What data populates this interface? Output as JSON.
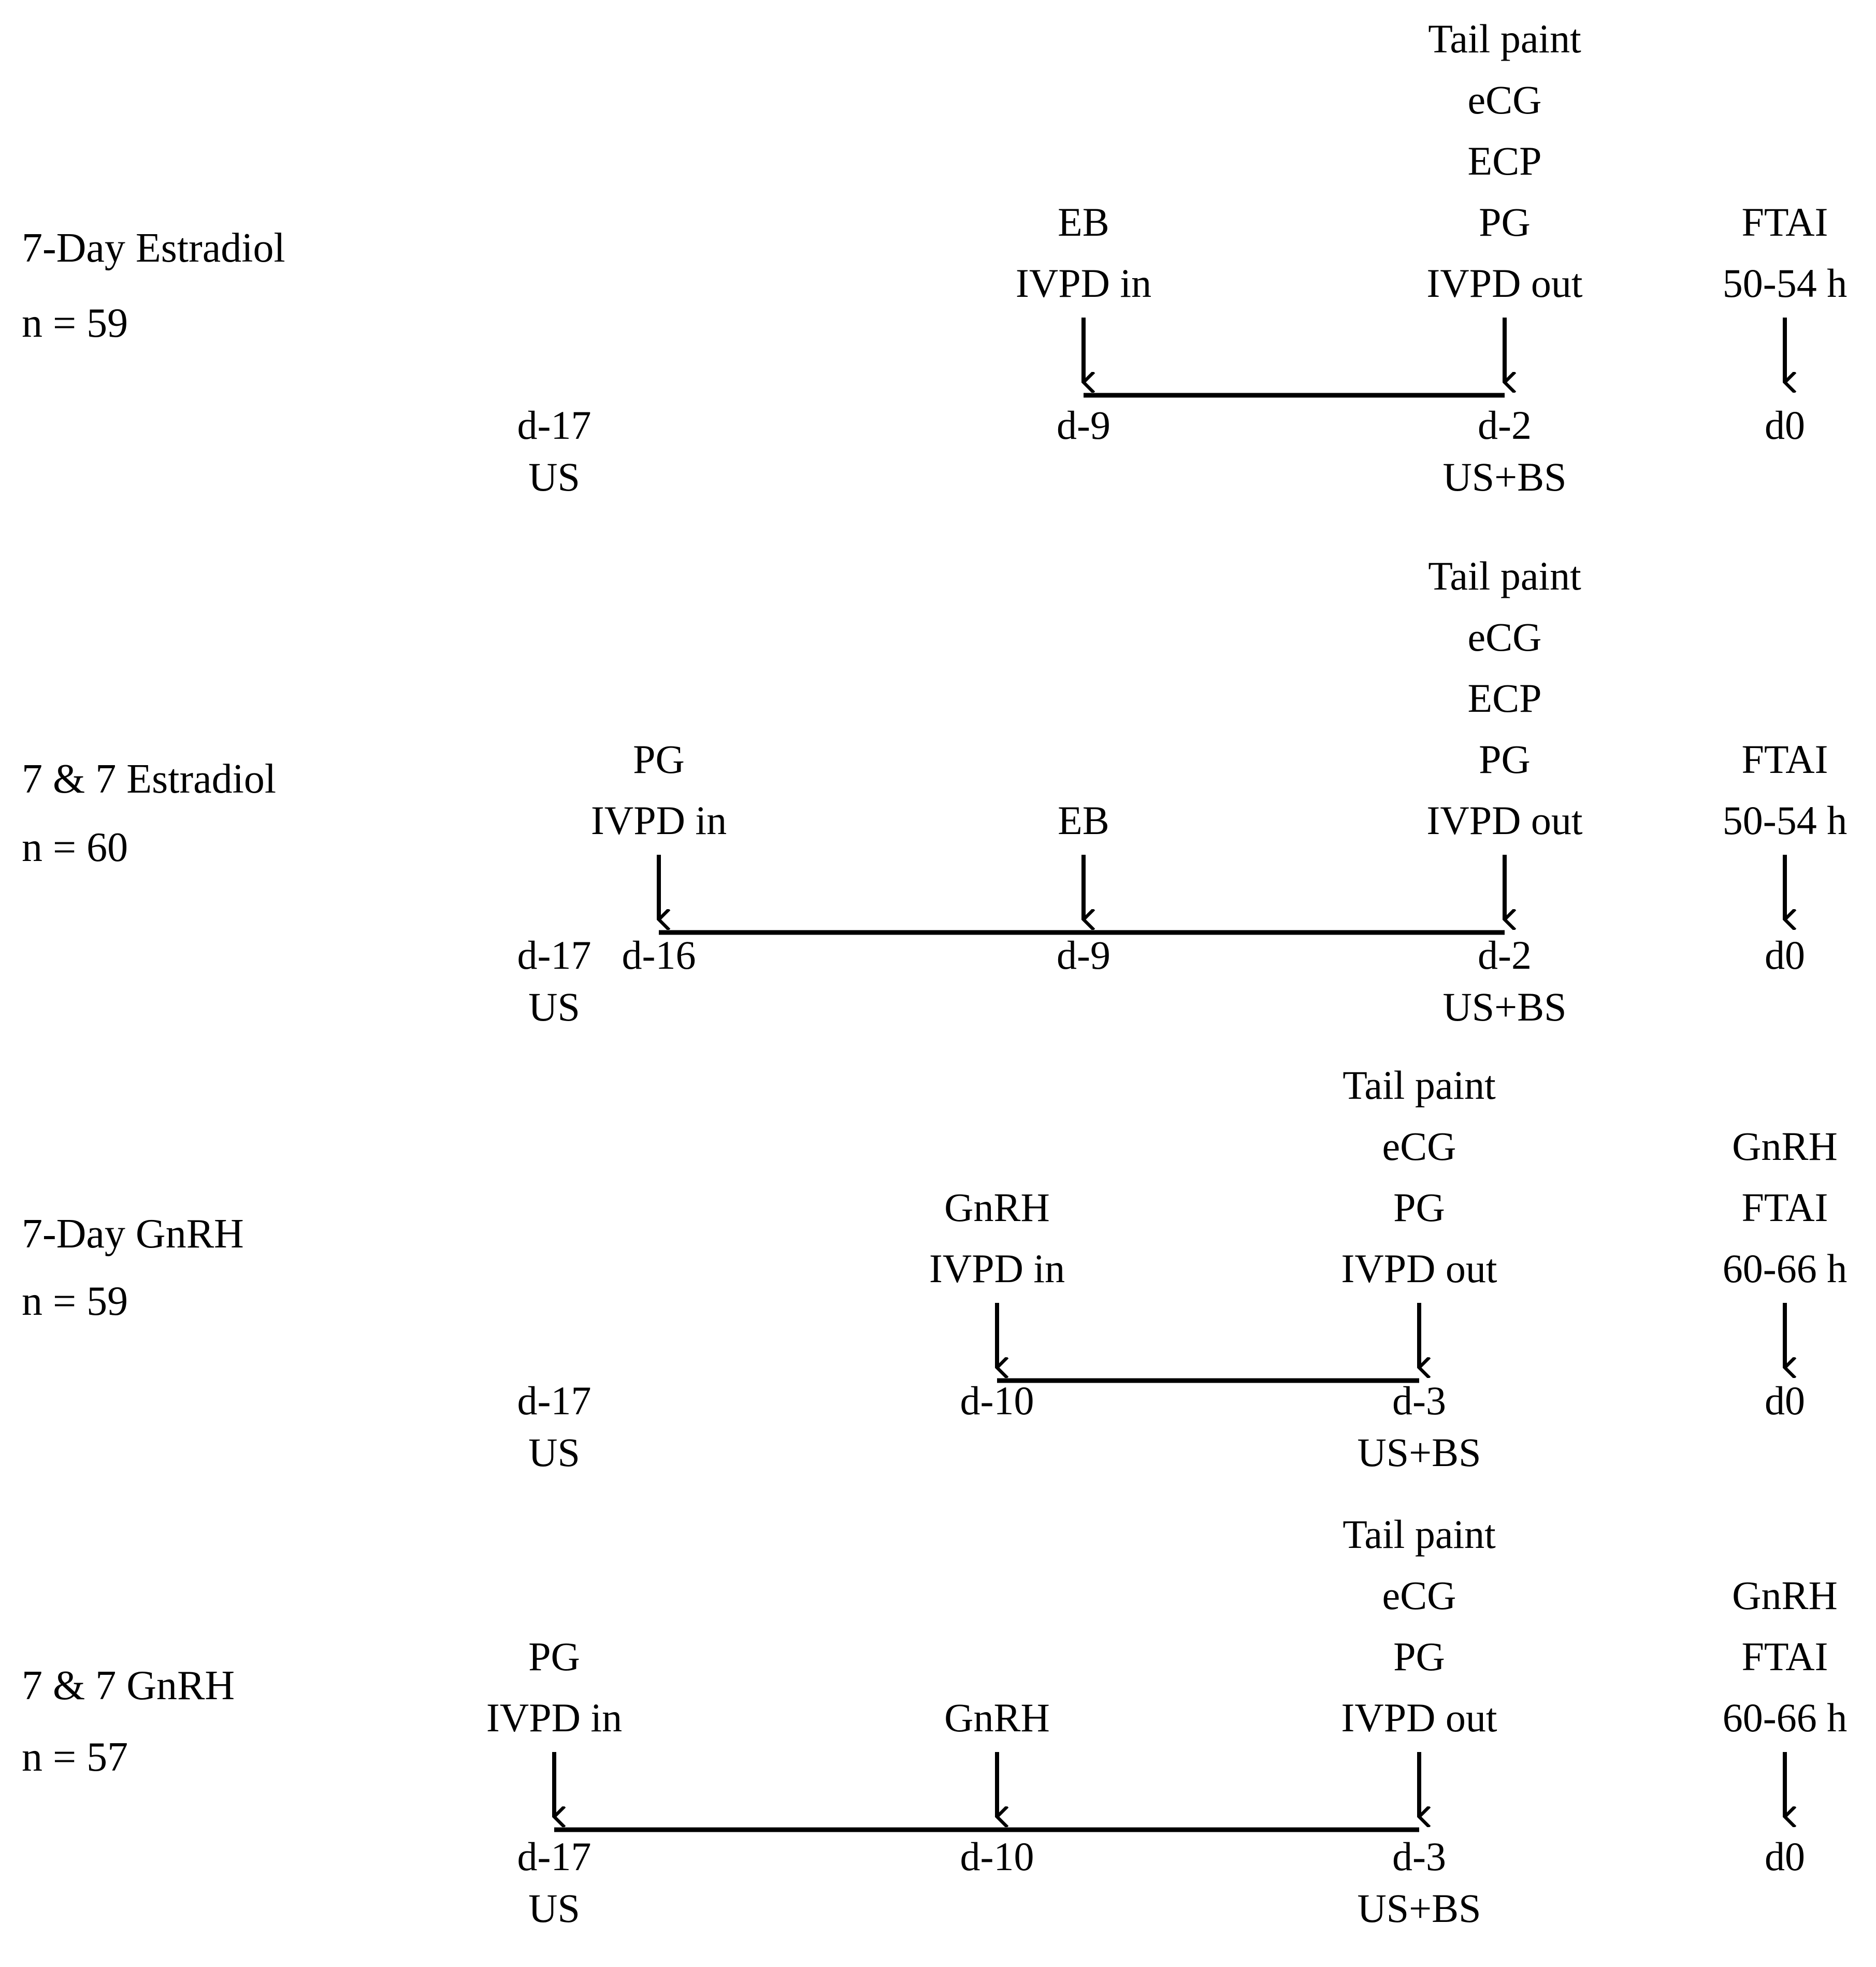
{
  "protocols": [
    {
      "name": "7-Day Estradiol",
      "n": "n = 59",
      "timeline": {
        "start": "d-9",
        "end": "d-2"
      },
      "events": [
        {
          "id": "d-17",
          "day_label": "d-17",
          "below": [
            "US"
          ],
          "above": [],
          "arrow": false
        },
        {
          "id": "d-9",
          "day_label": "d-9",
          "below": [],
          "above": [
            "EB",
            "IVPD in"
          ],
          "arrow": true
        },
        {
          "id": "d-2",
          "day_label": "d-2",
          "below": [
            "US+BS"
          ],
          "above": [
            "Tail paint",
            "eCG",
            "ECP",
            "PG",
            "IVPD out"
          ],
          "arrow": true
        },
        {
          "id": "d0",
          "day_label": "d0",
          "below": [],
          "above": [
            "FTAI",
            "50-54 h"
          ],
          "arrow": true
        }
      ]
    },
    {
      "name": "7 & 7 Estradiol",
      "n": "n = 60",
      "timeline": {
        "start": "d-16",
        "end": "d-2"
      },
      "events": [
        {
          "id": "d-17",
          "day_label": "d-17",
          "below": [
            "US"
          ],
          "above": [],
          "arrow": false
        },
        {
          "id": "d-16",
          "day_label": "d-16",
          "below": [],
          "above": [
            "PG",
            "IVPD in"
          ],
          "arrow": true
        },
        {
          "id": "d-9",
          "day_label": "d-9",
          "below": [],
          "above": [
            "EB"
          ],
          "arrow": true
        },
        {
          "id": "d-2",
          "day_label": "d-2",
          "below": [
            "US+BS"
          ],
          "above": [
            "Tail paint",
            "eCG",
            "ECP",
            "PG",
            "IVPD out"
          ],
          "arrow": true
        },
        {
          "id": "d0",
          "day_label": "d0",
          "below": [],
          "above": [
            "FTAI",
            "50-54 h"
          ],
          "arrow": true
        }
      ]
    },
    {
      "name": "7-Day GnRH",
      "n": "n = 59",
      "timeline": {
        "start": "d-10",
        "end": "d-3"
      },
      "events": [
        {
          "id": "d-17",
          "day_label": "d-17",
          "below": [
            "US"
          ],
          "above": [],
          "arrow": false
        },
        {
          "id": "d-10",
          "day_label": "d-10",
          "below": [],
          "above": [
            "GnRH",
            "IVPD in"
          ],
          "arrow": true
        },
        {
          "id": "d-3",
          "day_label": "d-3",
          "below": [
            "US+BS"
          ],
          "above": [
            "Tail paint",
            "eCG",
            "PG",
            "IVPD out"
          ],
          "arrow": true
        },
        {
          "id": "d0",
          "day_label": "d0",
          "below": [],
          "above": [
            "GnRH",
            "FTAI",
            "60-66 h"
          ],
          "arrow": true
        }
      ]
    },
    {
      "name": "7 & 7 GnRH",
      "n": "n = 57",
      "timeline": {
        "start": "d-17",
        "end": "d-3"
      },
      "events": [
        {
          "id": "d-17",
          "day_label": "d-17",
          "below": [
            "US"
          ],
          "above": [
            "PG",
            "IVPD in"
          ],
          "arrow": true
        },
        {
          "id": "d-10",
          "day_label": "d-10",
          "below": [],
          "above": [
            "GnRH"
          ],
          "arrow": true
        },
        {
          "id": "d-3",
          "day_label": "d-3",
          "below": [
            "US+BS"
          ],
          "above": [
            "Tail paint",
            "eCG",
            "PG",
            "IVPD out"
          ],
          "arrow": true
        },
        {
          "id": "d0",
          "day_label": "d0",
          "below": [],
          "above": [
            "GnRH",
            "FTAI",
            "60-66 h"
          ],
          "arrow": true
        }
      ]
    }
  ]
}
